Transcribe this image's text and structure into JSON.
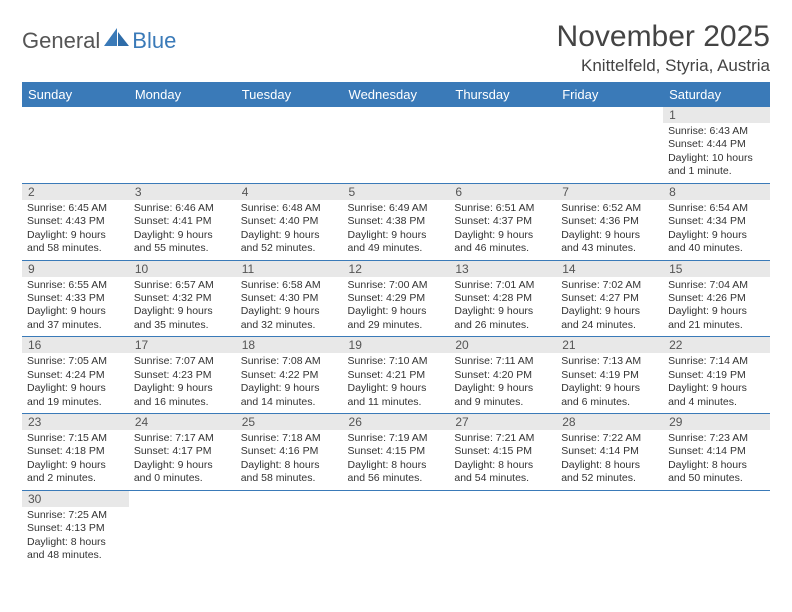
{
  "branding": {
    "logo_part1": "General",
    "logo_part2": "Blue",
    "logo_grey_color": "#6b6b6b",
    "logo_blue_color": "#3a7ab8"
  },
  "header": {
    "title": "November 2025",
    "location": "Knittelfeld, Styria, Austria"
  },
  "colors": {
    "header_bg": "#3a7ab8",
    "header_text": "#ffffff",
    "daynum_bg": "#e8e8e8",
    "row_divider": "#3a7ab8"
  },
  "weekdays": [
    "Sunday",
    "Monday",
    "Tuesday",
    "Wednesday",
    "Thursday",
    "Friday",
    "Saturday"
  ],
  "weeks": [
    [
      null,
      null,
      null,
      null,
      null,
      null,
      {
        "n": "1",
        "sunrise": "6:43 AM",
        "sunset": "4:44 PM",
        "daylight": "10 hours and 1 minute."
      }
    ],
    [
      {
        "n": "2",
        "sunrise": "6:45 AM",
        "sunset": "4:43 PM",
        "daylight": "9 hours and 58 minutes."
      },
      {
        "n": "3",
        "sunrise": "6:46 AM",
        "sunset": "4:41 PM",
        "daylight": "9 hours and 55 minutes."
      },
      {
        "n": "4",
        "sunrise": "6:48 AM",
        "sunset": "4:40 PM",
        "daylight": "9 hours and 52 minutes."
      },
      {
        "n": "5",
        "sunrise": "6:49 AM",
        "sunset": "4:38 PM",
        "daylight": "9 hours and 49 minutes."
      },
      {
        "n": "6",
        "sunrise": "6:51 AM",
        "sunset": "4:37 PM",
        "daylight": "9 hours and 46 minutes."
      },
      {
        "n": "7",
        "sunrise": "6:52 AM",
        "sunset": "4:36 PM",
        "daylight": "9 hours and 43 minutes."
      },
      {
        "n": "8",
        "sunrise": "6:54 AM",
        "sunset": "4:34 PM",
        "daylight": "9 hours and 40 minutes."
      }
    ],
    [
      {
        "n": "9",
        "sunrise": "6:55 AM",
        "sunset": "4:33 PM",
        "daylight": "9 hours and 37 minutes."
      },
      {
        "n": "10",
        "sunrise": "6:57 AM",
        "sunset": "4:32 PM",
        "daylight": "9 hours and 35 minutes."
      },
      {
        "n": "11",
        "sunrise": "6:58 AM",
        "sunset": "4:30 PM",
        "daylight": "9 hours and 32 minutes."
      },
      {
        "n": "12",
        "sunrise": "7:00 AM",
        "sunset": "4:29 PM",
        "daylight": "9 hours and 29 minutes."
      },
      {
        "n": "13",
        "sunrise": "7:01 AM",
        "sunset": "4:28 PM",
        "daylight": "9 hours and 26 minutes."
      },
      {
        "n": "14",
        "sunrise": "7:02 AM",
        "sunset": "4:27 PM",
        "daylight": "9 hours and 24 minutes."
      },
      {
        "n": "15",
        "sunrise": "7:04 AM",
        "sunset": "4:26 PM",
        "daylight": "9 hours and 21 minutes."
      }
    ],
    [
      {
        "n": "16",
        "sunrise": "7:05 AM",
        "sunset": "4:24 PM",
        "daylight": "9 hours and 19 minutes."
      },
      {
        "n": "17",
        "sunrise": "7:07 AM",
        "sunset": "4:23 PM",
        "daylight": "9 hours and 16 minutes."
      },
      {
        "n": "18",
        "sunrise": "7:08 AM",
        "sunset": "4:22 PM",
        "daylight": "9 hours and 14 minutes."
      },
      {
        "n": "19",
        "sunrise": "7:10 AM",
        "sunset": "4:21 PM",
        "daylight": "9 hours and 11 minutes."
      },
      {
        "n": "20",
        "sunrise": "7:11 AM",
        "sunset": "4:20 PM",
        "daylight": "9 hours and 9 minutes."
      },
      {
        "n": "21",
        "sunrise": "7:13 AM",
        "sunset": "4:19 PM",
        "daylight": "9 hours and 6 minutes."
      },
      {
        "n": "22",
        "sunrise": "7:14 AM",
        "sunset": "4:19 PM",
        "daylight": "9 hours and 4 minutes."
      }
    ],
    [
      {
        "n": "23",
        "sunrise": "7:15 AM",
        "sunset": "4:18 PM",
        "daylight": "9 hours and 2 minutes."
      },
      {
        "n": "24",
        "sunrise": "7:17 AM",
        "sunset": "4:17 PM",
        "daylight": "9 hours and 0 minutes."
      },
      {
        "n": "25",
        "sunrise": "7:18 AM",
        "sunset": "4:16 PM",
        "daylight": "8 hours and 58 minutes."
      },
      {
        "n": "26",
        "sunrise": "7:19 AM",
        "sunset": "4:15 PM",
        "daylight": "8 hours and 56 minutes."
      },
      {
        "n": "27",
        "sunrise": "7:21 AM",
        "sunset": "4:15 PM",
        "daylight": "8 hours and 54 minutes."
      },
      {
        "n": "28",
        "sunrise": "7:22 AM",
        "sunset": "4:14 PM",
        "daylight": "8 hours and 52 minutes."
      },
      {
        "n": "29",
        "sunrise": "7:23 AM",
        "sunset": "4:14 PM",
        "daylight": "8 hours and 50 minutes."
      }
    ],
    [
      {
        "n": "30",
        "sunrise": "7:25 AM",
        "sunset": "4:13 PM",
        "daylight": "8 hours and 48 minutes."
      },
      null,
      null,
      null,
      null,
      null,
      null
    ]
  ],
  "labels": {
    "sunrise_prefix": "Sunrise: ",
    "sunset_prefix": "Sunset: ",
    "daylight_prefix": "Daylight: "
  }
}
